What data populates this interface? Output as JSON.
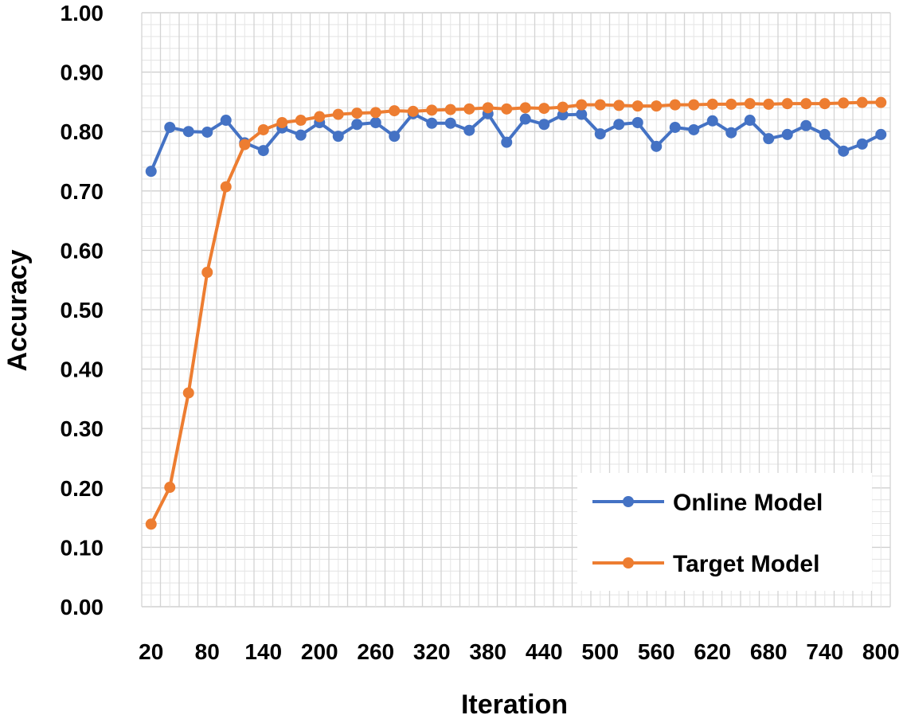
{
  "chart_data": {
    "type": "line",
    "title": "",
    "xlabel": "Iteration",
    "ylabel": "Accuracy",
    "x": [
      20,
      40,
      60,
      80,
      100,
      120,
      140,
      160,
      180,
      200,
      220,
      240,
      260,
      280,
      300,
      320,
      340,
      360,
      380,
      400,
      420,
      440,
      460,
      480,
      500,
      520,
      540,
      560,
      580,
      600,
      620,
      640,
      660,
      680,
      700,
      720,
      740,
      760,
      780,
      800
    ],
    "x_tick_labels": [
      "20",
      "80",
      "140",
      "200",
      "260",
      "320",
      "380",
      "440",
      "500",
      "560",
      "620",
      "680",
      "740",
      "800"
    ],
    "y_tick_labels": [
      "0.00",
      "0.10",
      "0.20",
      "0.30",
      "0.40",
      "0.50",
      "0.60",
      "0.70",
      "0.80",
      "0.90",
      "1.00"
    ],
    "ylim": [
      0,
      1.0
    ],
    "grid": true,
    "legend_position": "bottom-right",
    "series": [
      {
        "name": "Online Model",
        "color": "#4472C4",
        "values": [
          0.733,
          0.807,
          0.8,
          0.799,
          0.819,
          0.781,
          0.768,
          0.806,
          0.794,
          0.815,
          0.792,
          0.812,
          0.815,
          0.792,
          0.83,
          0.814,
          0.814,
          0.802,
          0.83,
          0.782,
          0.821,
          0.812,
          0.828,
          0.829,
          0.796,
          0.812,
          0.815,
          0.775,
          0.807,
          0.803,
          0.818,
          0.798,
          0.819,
          0.788,
          0.795,
          0.81,
          0.795,
          0.767,
          0.779,
          0.795
        ]
      },
      {
        "name": "Target Model",
        "color": "#ED7D31",
        "values": [
          0.139,
          0.201,
          0.36,
          0.563,
          0.707,
          0.778,
          0.803,
          0.815,
          0.819,
          0.825,
          0.829,
          0.831,
          0.832,
          0.835,
          0.834,
          0.836,
          0.837,
          0.838,
          0.84,
          0.838,
          0.84,
          0.839,
          0.841,
          0.845,
          0.845,
          0.844,
          0.843,
          0.843,
          0.845,
          0.845,
          0.846,
          0.846,
          0.847,
          0.846,
          0.847,
          0.847,
          0.847,
          0.848,
          0.849,
          0.849
        ]
      }
    ]
  }
}
